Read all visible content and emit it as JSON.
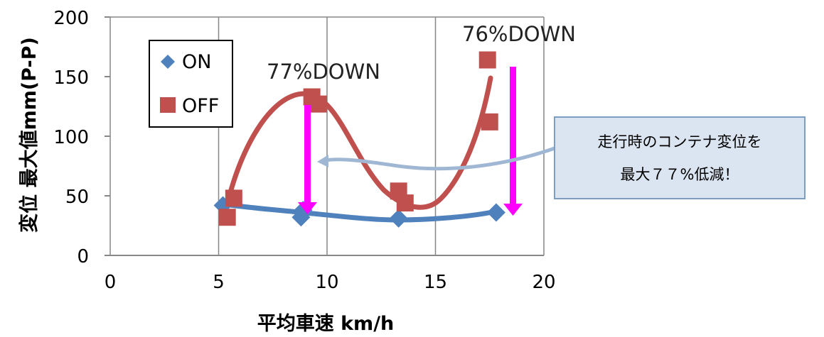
{
  "chart_data": {
    "type": "scatter",
    "xlabel": "平均車速 km/h",
    "ylabel": "変位 最大値mm(P-P)",
    "xlim": [
      0,
      20
    ],
    "ylim": [
      0,
      200
    ],
    "x_ticks": [
      "0",
      "5",
      "10",
      "15",
      "20"
    ],
    "y_ticks": [
      "0",
      "50",
      "100",
      "150",
      "200"
    ],
    "grid": "vertical",
    "legend_placement": "top-left",
    "series": [
      {
        "name": "ON",
        "marker": "diamond",
        "color": "#4f81bd",
        "points": [
          [
            5.2,
            42
          ],
          [
            8.8,
            32
          ],
          [
            8.9,
            38
          ],
          [
            13.3,
            31
          ],
          [
            17.8,
            36
          ]
        ]
      },
      {
        "name": "OFF",
        "marker": "square",
        "color": "#c0504d",
        "points": [
          [
            5.4,
            32
          ],
          [
            5.7,
            48
          ],
          [
            9.3,
            133
          ],
          [
            9.6,
            127
          ],
          [
            13.3,
            54
          ],
          [
            13.6,
            44
          ],
          [
            17.4,
            164
          ],
          [
            17.5,
            112
          ]
        ]
      }
    ],
    "annotations": [
      "77%DOWN",
      "76%DOWN"
    ],
    "callout": [
      "走行時のコンテナ変位を",
      "最大７７%低減！"
    ]
  },
  "colors": {
    "on": "#4f81bd",
    "off": "#c0504d",
    "arrow": "#ff00ff",
    "callout_fill": "#dbe5f1",
    "callout_border": "#7d9ec0"
  }
}
